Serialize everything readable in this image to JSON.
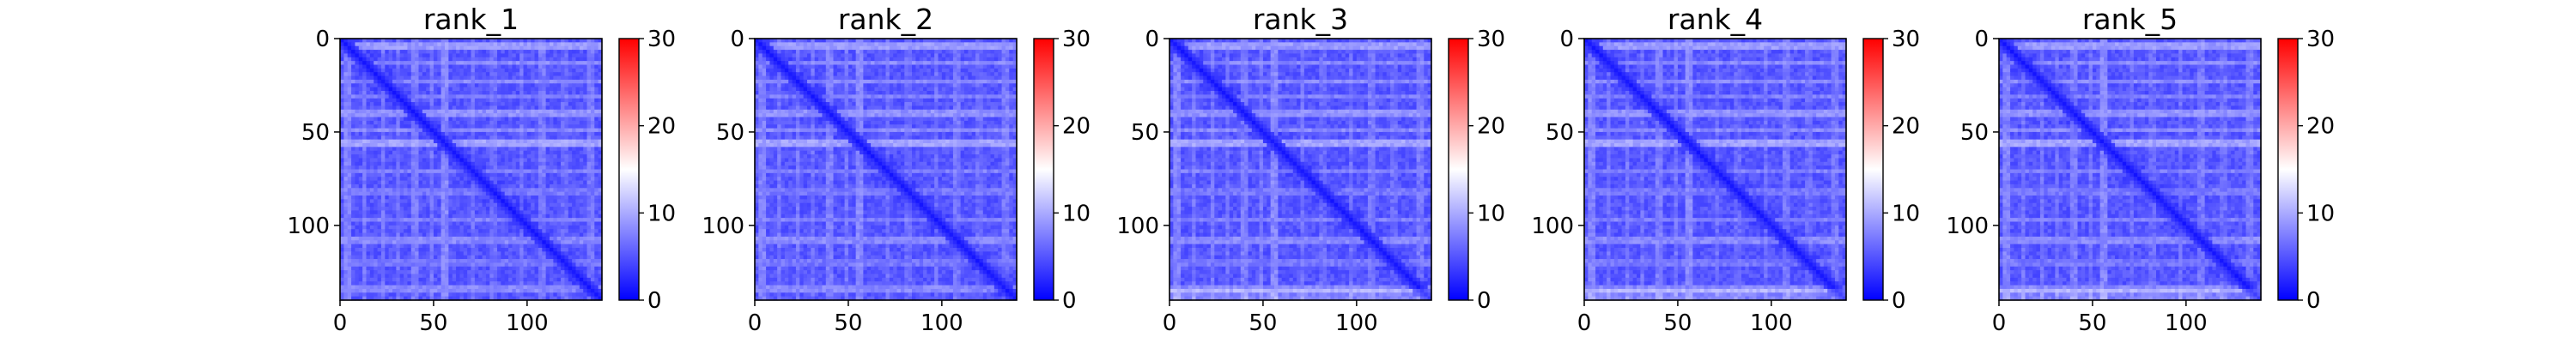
{
  "chart_data": [
    {
      "type": "heatmap",
      "title": "rank_1",
      "x_ticks": [
        0,
        50,
        100
      ],
      "y_ticks": [
        0,
        50,
        100
      ],
      "axis_range": [
        0,
        140
      ],
      "colorbar": {
        "ticks": [
          0,
          10,
          20,
          30
        ],
        "range": [
          0,
          30
        ],
        "colormap": [
          "#0000ff",
          "#ffffff",
          "#ff0000"
        ]
      },
      "typical_values": {
        "diagonal": 1,
        "background": 5,
        "band_highlight": 11
      }
    },
    {
      "type": "heatmap",
      "title": "rank_2",
      "x_ticks": [
        0,
        50,
        100
      ],
      "y_ticks": [
        0,
        50,
        100
      ],
      "axis_range": [
        0,
        140
      ],
      "colorbar": {
        "ticks": [
          0,
          10,
          20,
          30
        ],
        "range": [
          0,
          30
        ],
        "colormap": [
          "#0000ff",
          "#ffffff",
          "#ff0000"
        ]
      },
      "typical_values": {
        "diagonal": 1,
        "background": 5,
        "band_highlight": 11
      }
    },
    {
      "type": "heatmap",
      "title": "rank_3",
      "x_ticks": [
        0,
        50,
        100
      ],
      "y_ticks": [
        0,
        50,
        100
      ],
      "axis_range": [
        0,
        140
      ],
      "colorbar": {
        "ticks": [
          0,
          10,
          20,
          30
        ],
        "range": [
          0,
          30
        ],
        "colormap": [
          "#0000ff",
          "#ffffff",
          "#ff0000"
        ]
      },
      "typical_values": {
        "diagonal": 1,
        "background": 5,
        "band_highlight": 11
      }
    },
    {
      "type": "heatmap",
      "title": "rank_4",
      "x_ticks": [
        0,
        50,
        100
      ],
      "y_ticks": [
        0,
        50,
        100
      ],
      "axis_range": [
        0,
        140
      ],
      "colorbar": {
        "ticks": [
          0,
          10,
          20,
          30
        ],
        "range": [
          0,
          30
        ],
        "colormap": [
          "#0000ff",
          "#ffffff",
          "#ff0000"
        ]
      },
      "typical_values": {
        "diagonal": 1,
        "background": 5,
        "band_highlight": 11
      }
    },
    {
      "type": "heatmap",
      "title": "rank_5",
      "x_ticks": [
        0,
        50,
        100
      ],
      "y_ticks": [
        0,
        50,
        100
      ],
      "axis_range": [
        0,
        140
      ],
      "colorbar": {
        "ticks": [
          0,
          10,
          20,
          30
        ],
        "range": [
          0,
          30
        ],
        "colormap": [
          "#0000ff",
          "#ffffff",
          "#ff0000"
        ]
      },
      "typical_values": {
        "diagonal": 1,
        "background": 5,
        "band_highlight": 11
      }
    }
  ]
}
